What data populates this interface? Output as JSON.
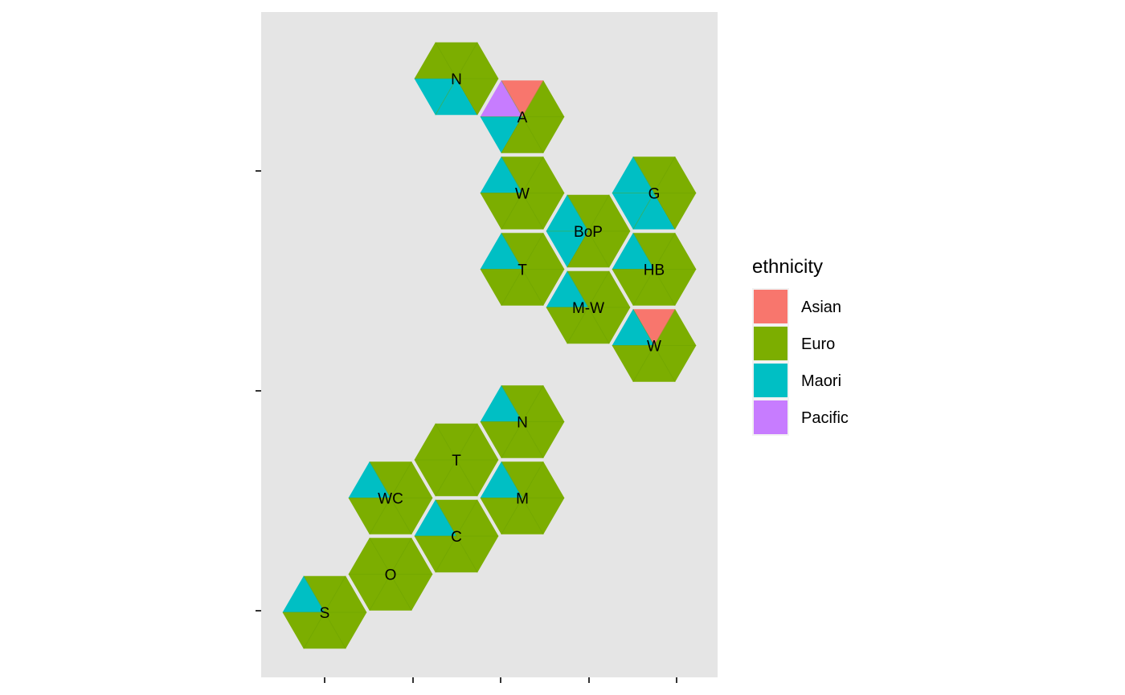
{
  "chart_data": {
    "type": "hexbin-map",
    "title": "",
    "xlabel": "",
    "ylabel": "",
    "grid": false,
    "legend": {
      "title": "ethnicity",
      "placement": "right",
      "items": [
        {
          "name": "Asian",
          "color": "#F8766D"
        },
        {
          "name": "Euro",
          "color": "#7CAE00"
        },
        {
          "name": "Maori",
          "color": "#00BFC4"
        },
        {
          "name": "Pacific",
          "color": "#C77CFF"
        }
      ]
    },
    "hex_edge_color": "#6aa000",
    "panel_color": "#E5E5E5",
    "regions": [
      {
        "label": "N",
        "col": 2,
        "row": 0,
        "slices": [
          "Euro",
          "Euro",
          "Euro",
          "Maori",
          "Maori",
          "Euro"
        ]
      },
      {
        "label": "A",
        "col": 3,
        "row": 0.5,
        "slices": [
          "Euro",
          "Asian",
          "Pacific",
          "Maori",
          "Euro",
          "Euro"
        ]
      },
      {
        "label": "W",
        "col": 3,
        "row": 1.5,
        "slices": [
          "Euro",
          "Euro",
          "Maori",
          "Euro",
          "Euro",
          "Euro"
        ]
      },
      {
        "label": "T",
        "col": 3,
        "row": 2.5,
        "slices": [
          "Euro",
          "Euro",
          "Maori",
          "Euro",
          "Euro",
          "Euro"
        ]
      },
      {
        "label": "BoP",
        "col": 4,
        "row": 2,
        "slices": [
          "Euro",
          "Euro",
          "Maori",
          "Maori",
          "Euro",
          "Euro"
        ]
      },
      {
        "label": "M-W",
        "col": 4,
        "row": 3,
        "slices": [
          "Euro",
          "Euro",
          "Maori",
          "Euro",
          "Euro",
          "Euro"
        ]
      },
      {
        "label": "G",
        "col": 5,
        "row": 1.5,
        "slices": [
          "Euro",
          "Euro",
          "Maori",
          "Maori",
          "Maori",
          "Euro"
        ]
      },
      {
        "label": "HB",
        "col": 5,
        "row": 2.5,
        "slices": [
          "Euro",
          "Euro",
          "Maori",
          "Euro",
          "Euro",
          "Euro"
        ]
      },
      {
        "label": "W",
        "col": 5,
        "row": 3.5,
        "slices": [
          "Euro",
          "Asian",
          "Maori",
          "Euro",
          "Euro",
          "Euro"
        ]
      },
      {
        "label": "N",
        "col": 3,
        "row": 4.5,
        "slices": [
          "Euro",
          "Euro",
          "Maori",
          "Euro",
          "Euro",
          "Euro"
        ]
      },
      {
        "label": "T",
        "col": 2,
        "row": 5,
        "slices": [
          "Euro",
          "Euro",
          "Euro",
          "Euro",
          "Euro",
          "Euro"
        ]
      },
      {
        "label": "M",
        "col": 3,
        "row": 5.5,
        "slices": [
          "Euro",
          "Euro",
          "Maori",
          "Euro",
          "Euro",
          "Euro"
        ]
      },
      {
        "label": "WC",
        "col": 1,
        "row": 5.5,
        "slices": [
          "Euro",
          "Euro",
          "Maori",
          "Euro",
          "Euro",
          "Euro"
        ]
      },
      {
        "label": "C",
        "col": 2,
        "row": 6,
        "slices": [
          "Euro",
          "Euro",
          "Maori",
          "Euro",
          "Euro",
          "Euro"
        ]
      },
      {
        "label": "O",
        "col": 1,
        "row": 6.5,
        "slices": [
          "Euro",
          "Euro",
          "Euro",
          "Euro",
          "Euro",
          "Euro"
        ]
      },
      {
        "label": "S",
        "col": 0,
        "row": 7,
        "slices": [
          "Euro",
          "Euro",
          "Maori",
          "Euro",
          "Euro",
          "Euro"
        ]
      }
    ]
  }
}
